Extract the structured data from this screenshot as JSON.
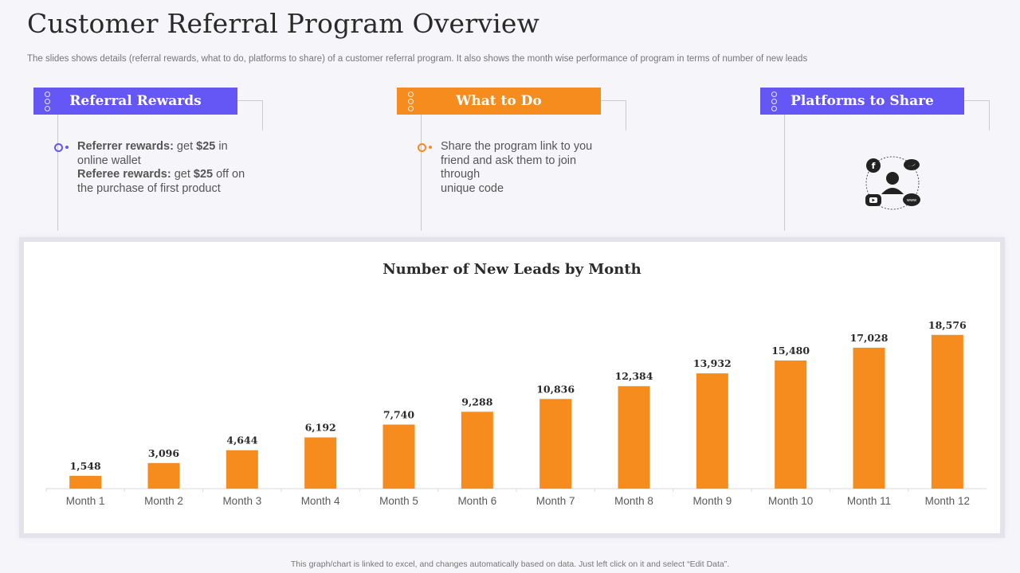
{
  "page": {
    "title": "Customer Referral Program Overview",
    "subtitle": "The slides shows details (referral rewards, what to do, platforms to share) of a customer referral program. It also shows the month wise performance of program in terms of number of new leads",
    "footer": "This graph/chart is linked to excel, and changes automatically based on data. Just left click on it and select “Edit Data”."
  },
  "panels": {
    "rewards": {
      "header": "Referral Rewards",
      "line1_bold": "Referrer rewards:",
      "line1_rest": " get ",
      "line1_amount": "$25",
      "line1_tail": " in online wallet",
      "line2_bold": "Referee rewards:",
      "line2_rest": " get ",
      "line2_amount": "$25",
      "line2_tail": " off on the purchase of first product"
    },
    "todo": {
      "header": "What to Do",
      "text_1": "Share the program link to you friend and ask them to join through",
      "text_2": "unique code"
    },
    "platforms": {
      "header": "Platforms to Share",
      "icons": [
        "facebook-icon",
        "twitter-icon",
        "youtube-icon",
        "www-icon",
        "user-icon"
      ],
      "www_label": "www"
    }
  },
  "colors": {
    "purple": "#6457f5",
    "orange": "#f78c1e",
    "bar": "#f78c1e"
  },
  "chart_data": {
    "type": "bar",
    "title": "Number of New Leads by Month",
    "categories": [
      "Month 1",
      "Month 2",
      "Month 3",
      "Month 4",
      "Month 5",
      "Month 6",
      "Month 7",
      "Month 8",
      "Month 9",
      "Month 10",
      "Month 11",
      "Month 12"
    ],
    "values": [
      1548,
      3096,
      4644,
      6192,
      7740,
      9288,
      10836,
      12384,
      13932,
      15480,
      17028,
      18576
    ],
    "labels": [
      "1,548",
      "3,096",
      "4,644",
      "6,192",
      "7,740",
      "9,288",
      "10,836",
      "12,384",
      "13,932",
      "15,480",
      "17,028",
      "18,576"
    ],
    "xlabel": "",
    "ylabel": "",
    "ylim": [
      0,
      20000
    ],
    "grid": false,
    "legend": "none"
  }
}
